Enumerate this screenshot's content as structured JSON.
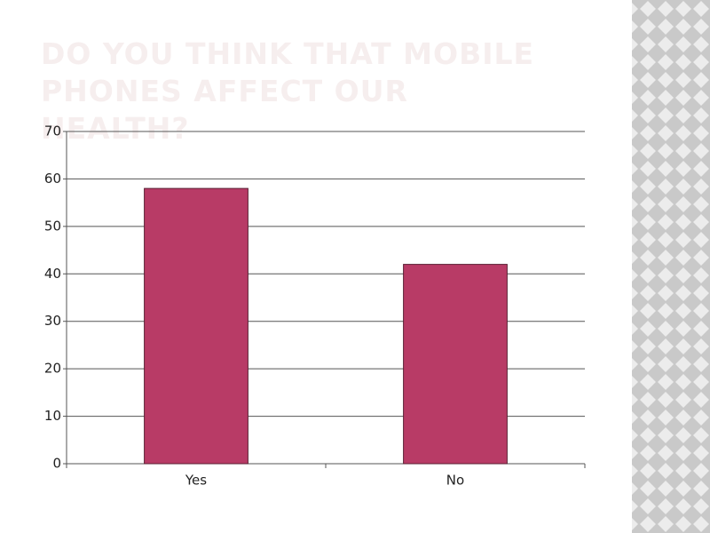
{
  "chart_data": {
    "type": "bar",
    "title": "DO YOU THINK THAT MOBILE PHONES AFFECT OUR HEALTH?",
    "categories": [
      "Yes",
      "No"
    ],
    "values": [
      58,
      42
    ],
    "color": "#b83b66",
    "ylim": [
      0,
      70
    ],
    "yticks": [
      0,
      10,
      20,
      30,
      40,
      50,
      60,
      70
    ],
    "grid": true
  }
}
